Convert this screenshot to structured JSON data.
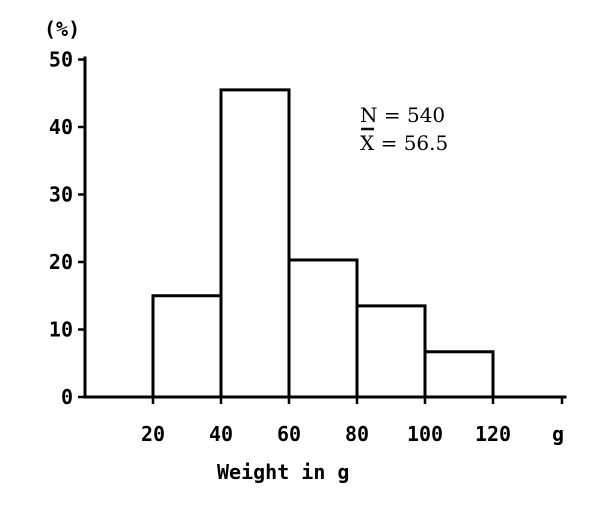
{
  "chart_data": {
    "type": "bar",
    "ylabel": "(%)",
    "xlabel": "Weight in g",
    "x_unit": "g",
    "bins": [
      {
        "from": 20,
        "to": 40,
        "value": 15
      },
      {
        "from": 40,
        "to": 60,
        "value": 45.5
      },
      {
        "from": 60,
        "to": 80,
        "value": 20.3
      },
      {
        "from": 80,
        "to": 100,
        "value": 13.5
      },
      {
        "from": 100,
        "to": 120,
        "value": 6.7
      }
    ],
    "x_ticks": [
      20,
      40,
      60,
      80,
      100,
      120
    ],
    "y_ticks": [
      0,
      10,
      20,
      30,
      40,
      50
    ],
    "xlim": [
      0,
      120
    ],
    "ylim": [
      0,
      50
    ],
    "grid": false,
    "annotations": {
      "n": "N = 540",
      "mean": "X = 56.5"
    }
  }
}
